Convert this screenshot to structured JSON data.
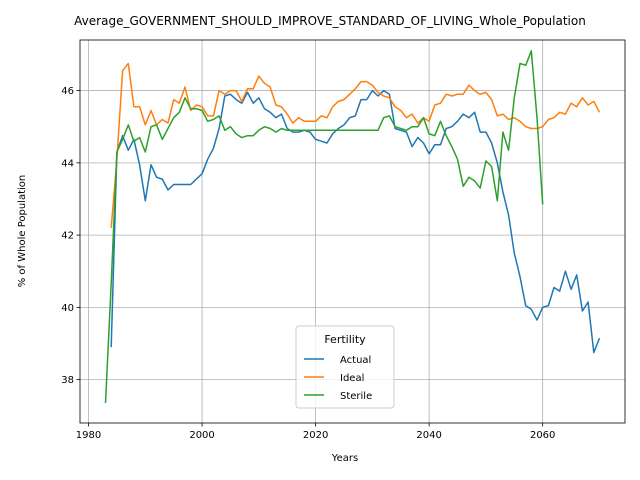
{
  "chart_data": {
    "type": "line",
    "title": "Average_GOVERNMENT_SHOULD_IMPROVE_STANDARD_OF_LIVING_Whole_Population",
    "xlabel": "Years",
    "ylabel": "% of Whole Population",
    "xlim": [
      1978.5,
      2074.5
    ],
    "ylim": [
      36.8,
      47.4
    ],
    "xticks": [
      1980,
      2000,
      2020,
      2040,
      2060
    ],
    "yticks": [
      38,
      40,
      42,
      44,
      46
    ],
    "grid": true,
    "legend": {
      "title": "Fertility",
      "placement": "bottom-center",
      "entries": [
        "Actual",
        "Ideal",
        "Sterile"
      ]
    },
    "series": [
      {
        "name": "Actual",
        "color": "#1f77b4",
        "x": [
          1984,
          1985,
          1986,
          1987,
          1988,
          1989,
          1990,
          1991,
          1992,
          1993,
          1994,
          1995,
          1996,
          1997,
          1998,
          1999,
          2000,
          2001,
          2002,
          2003,
          2004,
          2005,
          2006,
          2007,
          2008,
          2009,
          2010,
          2011,
          2012,
          2013,
          2014,
          2015,
          2016,
          2017,
          2018,
          2019,
          2020,
          2021,
          2022,
          2023,
          2024,
          2025,
          2026,
          2027,
          2028,
          2029,
          2030,
          2031,
          2032,
          2033,
          2034,
          2035,
          2036,
          2037,
          2038,
          2039,
          2040,
          2041,
          2042,
          2043,
          2044,
          2045,
          2046,
          2047,
          2048,
          2049,
          2050,
          2051,
          2052,
          2053,
          2054,
          2055,
          2056,
          2057,
          2058,
          2059,
          2060,
          2061,
          2062,
          2063,
          2064,
          2065,
          2066,
          2067,
          2068,
          2069,
          2070
        ],
        "values": [
          38.9,
          44.3,
          44.75,
          44.35,
          44.65,
          43.95,
          42.95,
          43.95,
          43.6,
          43.55,
          43.25,
          43.4,
          43.4,
          43.4,
          43.4,
          43.55,
          43.7,
          44.1,
          44.4,
          44.95,
          45.85,
          45.9,
          45.75,
          45.65,
          45.95,
          45.65,
          45.8,
          45.5,
          45.4,
          45.25,
          45.35,
          44.95,
          44.85,
          44.85,
          44.9,
          44.85,
          44.65,
          44.6,
          44.55,
          44.8,
          44.95,
          45.05,
          45.25,
          45.3,
          45.75,
          45.75,
          46.0,
          45.85,
          46.0,
          45.9,
          44.95,
          44.9,
          44.85,
          44.45,
          44.7,
          44.55,
          44.25,
          44.5,
          44.5,
          44.95,
          45.0,
          45.15,
          45.35,
          45.25,
          45.4,
          44.85,
          44.85,
          44.55,
          44.0,
          43.2,
          42.55,
          41.5,
          40.85,
          40.05,
          39.95,
          39.65,
          40.0,
          40.05,
          40.55,
          40.45,
          41.0,
          40.5,
          40.9,
          39.9,
          40.15,
          38.75,
          39.15
        ]
      },
      {
        "name": "Ideal",
        "color": "#ff7f0e",
        "x": [
          1984,
          1985,
          1986,
          1987,
          1988,
          1989,
          1990,
          1991,
          1992,
          1993,
          1994,
          1995,
          1996,
          1997,
          1998,
          1999,
          2000,
          2001,
          2002,
          2003,
          2004,
          2005,
          2006,
          2007,
          2008,
          2009,
          2010,
          2011,
          2012,
          2013,
          2014,
          2015,
          2016,
          2017,
          2018,
          2019,
          2020,
          2021,
          2022,
          2023,
          2024,
          2025,
          2026,
          2027,
          2028,
          2029,
          2030,
          2031,
          2032,
          2033,
          2034,
          2035,
          2036,
          2037,
          2038,
          2039,
          2040,
          2041,
          2042,
          2043,
          2044,
          2045,
          2046,
          2047,
          2048,
          2049,
          2050,
          2051,
          2052,
          2053,
          2054,
          2055,
          2056,
          2057,
          2058,
          2059,
          2060,
          2061,
          2062,
          2063,
          2064,
          2065,
          2066,
          2067,
          2068,
          2069,
          2070
        ],
        "values": [
          42.2,
          44.1,
          46.55,
          46.75,
          45.55,
          45.55,
          45.05,
          45.45,
          45.05,
          45.2,
          45.1,
          45.75,
          45.65,
          46.1,
          45.45,
          45.6,
          45.55,
          45.3,
          45.3,
          46.0,
          45.9,
          46.0,
          46.0,
          45.7,
          46.05,
          46.05,
          46.4,
          46.2,
          46.1,
          45.6,
          45.55,
          45.35,
          45.1,
          45.25,
          45.15,
          45.15,
          45.15,
          45.3,
          45.25,
          45.55,
          45.7,
          45.75,
          45.9,
          46.05,
          46.25,
          46.25,
          46.15,
          45.95,
          45.85,
          45.8,
          45.55,
          45.45,
          45.25,
          45.35,
          45.1,
          45.25,
          45.15,
          45.6,
          45.65,
          45.9,
          45.85,
          45.9,
          45.9,
          46.15,
          46.0,
          45.9,
          45.95,
          45.75,
          45.3,
          45.35,
          45.2,
          45.25,
          45.15,
          45.0,
          44.95,
          44.95,
          45.0,
          45.2,
          45.25,
          45.4,
          45.35,
          45.65,
          45.55,
          45.8,
          45.6,
          45.7,
          45.4
        ]
      },
      {
        "name": "Sterile",
        "color": "#2ca02c",
        "x": [
          1983,
          1984,
          1985,
          1986,
          1987,
          1988,
          1989,
          1990,
          1991,
          1992,
          1993,
          1994,
          1995,
          1996,
          1997,
          1998,
          1999,
          2000,
          2001,
          2002,
          2003,
          2004,
          2005,
          2006,
          2007,
          2008,
          2009,
          2010,
          2011,
          2012,
          2013,
          2014,
          2015,
          2016,
          2017,
          2018,
          2019,
          2020,
          2021,
          2022,
          2023,
          2024,
          2025,
          2026,
          2027,
          2028,
          2029,
          2030,
          2031,
          2032,
          2033,
          2034,
          2035,
          2036,
          2037,
          2038,
          2039,
          2040,
          2041,
          2042,
          2043,
          2044,
          2045,
          2046,
          2047,
          2048,
          2049,
          2050,
          2051,
          2052,
          2053,
          2054,
          2055,
          2056,
          2057,
          2058,
          2059,
          2060
        ],
        "values": [
          37.35,
          40.65,
          44.3,
          44.65,
          45.05,
          44.6,
          44.7,
          44.3,
          45.0,
          45.05,
          44.65,
          44.95,
          45.25,
          45.4,
          45.8,
          45.5,
          45.5,
          45.45,
          45.15,
          45.2,
          45.3,
          44.9,
          45.0,
          44.8,
          44.7,
          44.75,
          44.75,
          44.9,
          45.0,
          44.95,
          44.85,
          44.95,
          44.9,
          44.9,
          44.9,
          44.9,
          44.9,
          44.9,
          44.9,
          44.9,
          44.9,
          44.9,
          44.9,
          44.9,
          44.9,
          44.9,
          44.9,
          44.9,
          44.9,
          45.25,
          45.3,
          45.0,
          44.95,
          44.9,
          45.0,
          45.0,
          45.25,
          44.8,
          44.75,
          45.15,
          44.75,
          44.45,
          44.1,
          43.35,
          43.6,
          43.5,
          43.3,
          44.05,
          43.9,
          42.95,
          44.85,
          44.35,
          45.8,
          46.75,
          46.7,
          47.1,
          45.25,
          42.85
        ]
      }
    ]
  }
}
